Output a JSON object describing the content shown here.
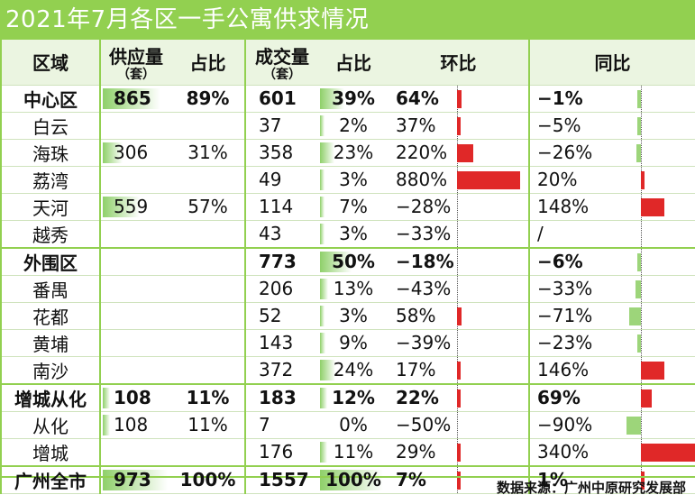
{
  "title": "2021年7月各区一手公寓供求情况",
  "headers": {
    "region": "区域",
    "supply": "供应量",
    "supply_unit": "（套）",
    "supply_share": "占比",
    "deal": "成交量",
    "deal_unit": "（套）",
    "deal_share": "占比",
    "mom": "环比",
    "yoy": "同比"
  },
  "rows": [
    {
      "region": "中心区",
      "type": "region",
      "supply": "865",
      "supply_share": "89%",
      "deal": "601",
      "deal_share": "39%",
      "mom": "64%",
      "yoy": "−1%",
      "supply_pct": 89,
      "deal_pct": 39,
      "mom_value": 64,
      "yoy_value": -1
    },
    {
      "region": "白云",
      "type": "district",
      "supply": "",
      "supply_share": "",
      "deal": "37",
      "deal_share": "2%",
      "mom": "37%",
      "yoy": "−5%",
      "supply_pct": 0,
      "deal_pct": 2,
      "mom_value": 37,
      "yoy_value": -5
    },
    {
      "region": "海珠",
      "type": "district",
      "supply": "306",
      "supply_share": "31%",
      "deal": "358",
      "deal_share": "23%",
      "mom": "220%",
      "yoy": "−26%",
      "supply_pct": 31,
      "deal_pct": 23,
      "mom_value": 220,
      "yoy_value": -26
    },
    {
      "region": "荔湾",
      "type": "district",
      "supply": "",
      "supply_share": "",
      "deal": "49",
      "deal_share": "3%",
      "mom": "880%",
      "yoy": "20%",
      "supply_pct": 0,
      "deal_pct": 3,
      "mom_value": 880,
      "yoy_value": 20
    },
    {
      "region": "天河",
      "type": "district",
      "supply": "559",
      "supply_share": "57%",
      "deal": "114",
      "deal_share": "7%",
      "mom": "−28%",
      "yoy": "148%",
      "supply_pct": 57,
      "deal_pct": 7,
      "mom_value": -28,
      "yoy_value": 148
    },
    {
      "region": "越秀",
      "type": "district",
      "supply": "",
      "supply_share": "",
      "deal": "43",
      "deal_share": "3%",
      "mom": "−33%",
      "yoy": "/",
      "supply_pct": 0,
      "deal_pct": 3,
      "mom_value": -33,
      "yoy_value": null
    },
    {
      "region": "外围区",
      "type": "region",
      "supply": "",
      "supply_share": "",
      "deal": "773",
      "deal_share": "50%",
      "mom": "−18%",
      "yoy": "−6%",
      "supply_pct": 0,
      "deal_pct": 50,
      "mom_value": -18,
      "yoy_value": -6
    },
    {
      "region": "番禺",
      "type": "district",
      "supply": "",
      "supply_share": "",
      "deal": "206",
      "deal_share": "13%",
      "mom": "−43%",
      "yoy": "−33%",
      "supply_pct": 0,
      "deal_pct": 13,
      "mom_value": -43,
      "yoy_value": -33
    },
    {
      "region": "花都",
      "type": "district",
      "supply": "",
      "supply_share": "",
      "deal": "52",
      "deal_share": "3%",
      "mom": "58%",
      "yoy": "−71%",
      "supply_pct": 0,
      "deal_pct": 3,
      "mom_value": 58,
      "yoy_value": -71
    },
    {
      "region": "黄埔",
      "type": "district",
      "supply": "",
      "supply_share": "",
      "deal": "143",
      "deal_share": "9%",
      "mom": "−39%",
      "yoy": "−23%",
      "supply_pct": 0,
      "deal_pct": 9,
      "mom_value": -39,
      "yoy_value": -23
    },
    {
      "region": "南沙",
      "type": "district",
      "supply": "",
      "supply_share": "",
      "deal": "372",
      "deal_share": "24%",
      "mom": "17%",
      "yoy": "146%",
      "supply_pct": 0,
      "deal_pct": 24,
      "mom_value": 17,
      "yoy_value": 146
    },
    {
      "region": "增城从化",
      "type": "region",
      "supply": "108",
      "supply_share": "11%",
      "deal": "183",
      "deal_share": "12%",
      "mom": "22%",
      "yoy": "69%",
      "supply_pct": 11,
      "deal_pct": 12,
      "mom_value": 22,
      "yoy_value": 69
    },
    {
      "region": "从化",
      "type": "district",
      "supply": "108",
      "supply_share": "11%",
      "deal": "7",
      "deal_share": "0%",
      "mom": "−50%",
      "yoy": "−90%",
      "supply_pct": 11,
      "deal_pct": 0,
      "mom_value": -50,
      "yoy_value": -90
    },
    {
      "region": "增城",
      "type": "district",
      "supply": "",
      "supply_share": "",
      "deal": "176",
      "deal_share": "11%",
      "mom": "29%",
      "yoy": "340%",
      "supply_pct": 0,
      "deal_pct": 11,
      "mom_value": 29,
      "yoy_value": 340
    },
    {
      "region": "广州全市",
      "type": "region",
      "supply": "973",
      "supply_share": "100%",
      "deal": "1557",
      "deal_share": "100%",
      "mom": "7%",
      "yoy": "1%",
      "supply_pct": 100,
      "deal_pct": 100,
      "mom_value": 7,
      "yoy_value": 1
    }
  ],
  "source": "数据来源：广州中原研究发展部",
  "colors": {
    "accent": "#92d050",
    "positive_bar": "#e02828",
    "negative_bar": "#9dd57a"
  }
}
